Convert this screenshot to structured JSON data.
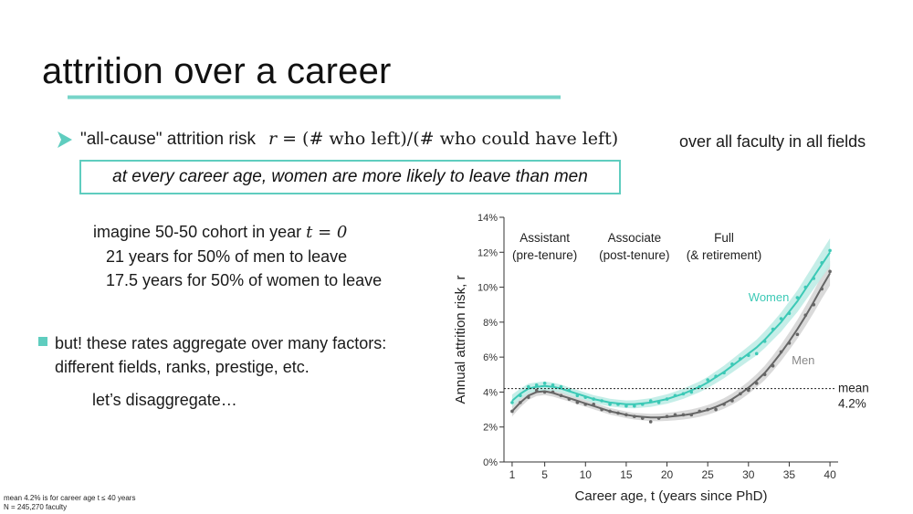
{
  "slide": {
    "title": "attrition over a career",
    "risk_label": "\"all-cause\" attrition risk",
    "formula_r": "r",
    "formula_rest": " = (# who left)/(# who could have left)",
    "scope": "over all faculty in all fields",
    "highlight": "at every career age, women are more likely to leave than men",
    "cohort_line1_text": "imagine 50-50 cohort in year ",
    "cohort_line1_math": "t = 0",
    "cohort_line2": "21 years for 50% of men to leave",
    "cohort_line3": "17.5 years for 50% of women to leave",
    "but_line1": "but! these rates aggregate over many factors:",
    "but_line2": "different fields, ranks, prestige, etc.",
    "lets": "let’s disaggregate…",
    "footnote1": "mean 4.2% is for career age t ≤ 40 years",
    "footnote2": "N = 245,270 faculty"
  },
  "colors": {
    "accent": "#5fcdbf",
    "women": "#3cc9b6",
    "women_band": "#bfece5",
    "men": "#666666",
    "men_band": "#d6d6d6"
  },
  "chart_data": {
    "type": "line",
    "xlabel": "Career age, t (years since PhD)",
    "ylabel": "Annual attrition risk, r",
    "xlim": [
      0,
      41
    ],
    "ylim": [
      0,
      14
    ],
    "xticks": [
      1,
      5,
      10,
      15,
      20,
      25,
      30,
      35,
      40
    ],
    "yticks": [
      0,
      2,
      4,
      6,
      8,
      10,
      12,
      14
    ],
    "ytick_labels": [
      "0%",
      "2%",
      "4%",
      "6%",
      "8%",
      "10%",
      "12%",
      "14%"
    ],
    "grid": false,
    "rank_labels": [
      {
        "line1": "Assistant",
        "line2": "(pre-tenure)",
        "x": 5
      },
      {
        "line1": "Associate",
        "line2": "(post-tenure)",
        "x": 16
      },
      {
        "line1": "Full",
        "line2": "(& retirement)",
        "x": 27
      }
    ],
    "mean": {
      "value": 4.2,
      "label1": "mean",
      "label2": "4.2%"
    },
    "series": [
      {
        "name": "Women",
        "x": [
          1,
          2,
          3,
          4,
          5,
          6,
          7,
          8,
          9,
          10,
          11,
          12,
          13,
          14,
          15,
          16,
          17,
          18,
          19,
          20,
          21,
          22,
          23,
          24,
          25,
          26,
          27,
          28,
          29,
          30,
          31,
          32,
          33,
          34,
          35,
          36,
          37,
          38,
          39,
          40
        ],
        "smooth": [
          3.5,
          3.9,
          4.2,
          4.3,
          4.35,
          4.3,
          4.2,
          4.05,
          3.9,
          3.75,
          3.6,
          3.5,
          3.4,
          3.35,
          3.3,
          3.3,
          3.35,
          3.4,
          3.5,
          3.6,
          3.75,
          3.9,
          4.1,
          4.3,
          4.55,
          4.85,
          5.15,
          5.5,
          5.85,
          6.2,
          6.55,
          7.0,
          7.5,
          8.0,
          8.6,
          9.2,
          9.9,
          10.6,
          11.3,
          12.0
        ],
        "points": [
          3.4,
          3.8,
          4.3,
          4.4,
          4.5,
          4.4,
          4.3,
          4.1,
          3.8,
          3.7,
          3.6,
          3.5,
          3.3,
          3.3,
          3.2,
          3.2,
          3.3,
          3.5,
          3.4,
          3.6,
          3.8,
          3.9,
          4.0,
          4.3,
          4.7,
          4.9,
          5.1,
          5.6,
          5.9,
          6.1,
          6.2,
          6.9,
          7.6,
          8.2,
          8.5,
          9.4,
          10.0,
          10.5,
          11.4,
          12.1
        ],
        "band_halfwidth": [
          0.35,
          0.3,
          0.28,
          0.26,
          0.25,
          0.24,
          0.23,
          0.22,
          0.22,
          0.22,
          0.22,
          0.22,
          0.22,
          0.22,
          0.22,
          0.23,
          0.24,
          0.25,
          0.26,
          0.27,
          0.28,
          0.29,
          0.3,
          0.31,
          0.32,
          0.34,
          0.36,
          0.38,
          0.4,
          0.42,
          0.45,
          0.48,
          0.51,
          0.55,
          0.58,
          0.62,
          0.66,
          0.7,
          0.75,
          0.8
        ]
      },
      {
        "name": "Men",
        "x": [
          1,
          2,
          3,
          4,
          5,
          6,
          7,
          8,
          9,
          10,
          11,
          12,
          13,
          14,
          15,
          16,
          17,
          18,
          19,
          20,
          21,
          22,
          23,
          24,
          25,
          26,
          27,
          28,
          29,
          30,
          31,
          32,
          33,
          34,
          35,
          36,
          37,
          38,
          39,
          40
        ],
        "smooth": [
          2.9,
          3.4,
          3.8,
          4.0,
          4.05,
          3.95,
          3.8,
          3.65,
          3.5,
          3.35,
          3.2,
          3.05,
          2.9,
          2.8,
          2.7,
          2.62,
          2.58,
          2.55,
          2.55,
          2.58,
          2.62,
          2.68,
          2.75,
          2.85,
          2.98,
          3.15,
          3.35,
          3.6,
          3.9,
          4.25,
          4.65,
          5.1,
          5.65,
          6.25,
          6.9,
          7.6,
          8.35,
          9.15,
          10.0,
          10.8
        ],
        "points": [
          2.9,
          3.4,
          3.7,
          4.1,
          4.0,
          4.0,
          3.8,
          3.6,
          3.4,
          3.3,
          3.3,
          3.0,
          2.9,
          2.8,
          2.7,
          2.6,
          2.5,
          2.3,
          2.5,
          2.6,
          2.7,
          2.7,
          2.7,
          2.9,
          3.0,
          3.0,
          3.3,
          3.5,
          3.9,
          4.1,
          4.5,
          5.0,
          5.5,
          6.3,
          6.8,
          7.3,
          8.4,
          9.0,
          9.9,
          10.9
        ],
        "band_halfwidth": [
          0.3,
          0.27,
          0.25,
          0.23,
          0.22,
          0.21,
          0.2,
          0.19,
          0.19,
          0.19,
          0.19,
          0.19,
          0.19,
          0.19,
          0.19,
          0.19,
          0.2,
          0.21,
          0.22,
          0.23,
          0.24,
          0.25,
          0.26,
          0.27,
          0.28,
          0.29,
          0.3,
          0.32,
          0.34,
          0.36,
          0.38,
          0.41,
          0.44,
          0.47,
          0.5,
          0.54,
          0.58,
          0.62,
          0.66,
          0.7
        ]
      }
    ]
  }
}
